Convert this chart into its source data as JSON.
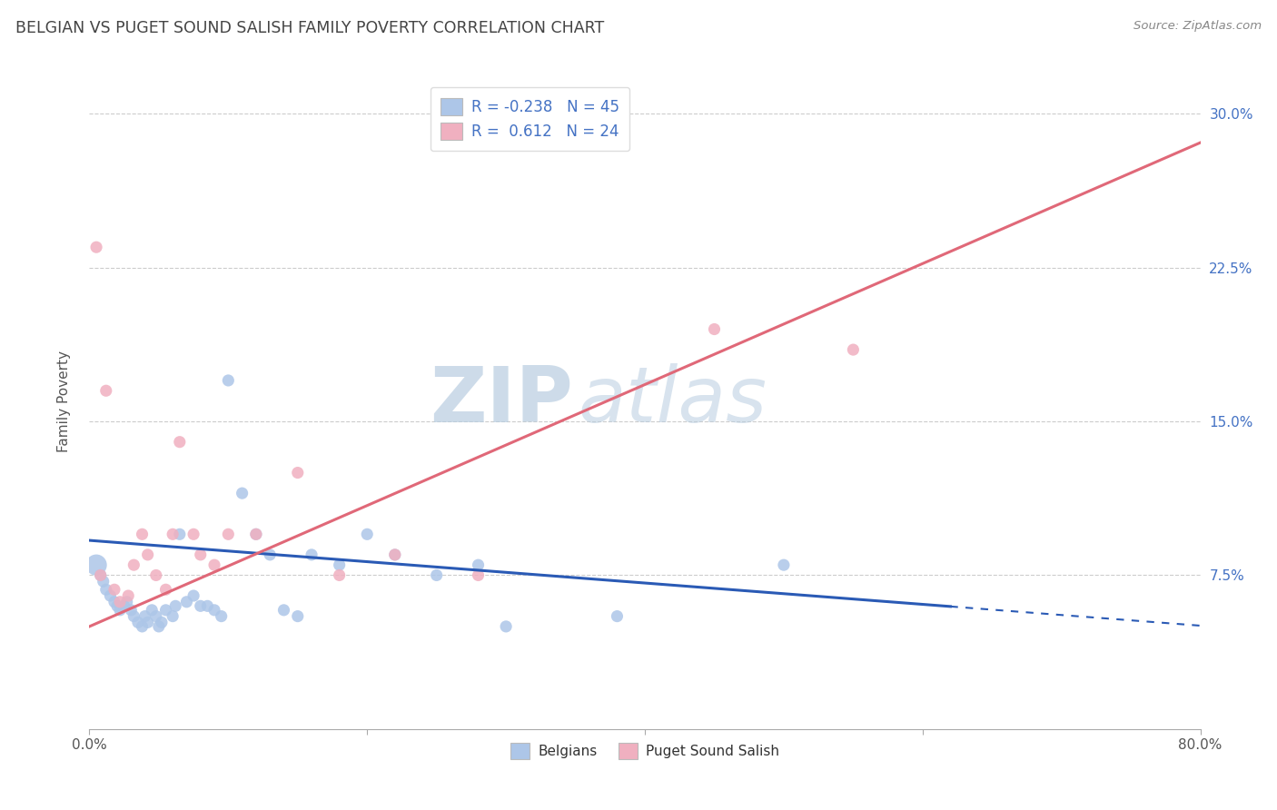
{
  "title": "BELGIAN VS PUGET SOUND SALISH FAMILY POVERTY CORRELATION CHART",
  "source": "Source: ZipAtlas.com",
  "ylabel": "Family Poverty",
  "xlim": [
    0.0,
    0.8
  ],
  "ylim": [
    0.0,
    0.32
  ],
  "xticks": [
    0.0,
    0.2,
    0.4,
    0.6,
    0.8
  ],
  "xtick_labels": [
    "0.0%",
    "",
    "",
    "",
    "80.0%"
  ],
  "yticks": [
    0.0,
    0.075,
    0.15,
    0.225,
    0.3
  ],
  "ytick_labels": [
    "",
    "7.5%",
    "15.0%",
    "22.5%",
    "30.0%"
  ],
  "blue_R": -0.238,
  "blue_N": 45,
  "pink_R": 0.612,
  "pink_N": 24,
  "blue_color": "#adc6e8",
  "pink_color": "#f0b0c0",
  "blue_line_color": "#2a5ab5",
  "pink_line_color": "#e06878",
  "watermark_zip": "ZIP",
  "watermark_atlas": "atlas",
  "blue_line_intercept": 0.092,
  "blue_line_slope": -0.052,
  "blue_line_solid_end": 0.62,
  "pink_line_intercept": 0.05,
  "pink_line_slope": 0.295,
  "blue_x": [
    0.005,
    0.008,
    0.01,
    0.012,
    0.015,
    0.018,
    0.02,
    0.022,
    0.025,
    0.027,
    0.03,
    0.032,
    0.035,
    0.038,
    0.04,
    0.042,
    0.045,
    0.048,
    0.05,
    0.052,
    0.055,
    0.06,
    0.062,
    0.065,
    0.07,
    0.075,
    0.08,
    0.085,
    0.09,
    0.095,
    0.1,
    0.11,
    0.12,
    0.13,
    0.14,
    0.15,
    0.16,
    0.18,
    0.2,
    0.22,
    0.25,
    0.28,
    0.3,
    0.38,
    0.5
  ],
  "blue_y": [
    0.08,
    0.075,
    0.072,
    0.068,
    0.065,
    0.062,
    0.06,
    0.058,
    0.06,
    0.062,
    0.058,
    0.055,
    0.052,
    0.05,
    0.055,
    0.052,
    0.058,
    0.055,
    0.05,
    0.052,
    0.058,
    0.055,
    0.06,
    0.095,
    0.062,
    0.065,
    0.06,
    0.06,
    0.058,
    0.055,
    0.17,
    0.115,
    0.095,
    0.085,
    0.058,
    0.055,
    0.085,
    0.08,
    0.095,
    0.085,
    0.075,
    0.08,
    0.05,
    0.055,
    0.08
  ],
  "pink_x": [
    0.005,
    0.008,
    0.012,
    0.018,
    0.022,
    0.028,
    0.032,
    0.038,
    0.042,
    0.048,
    0.055,
    0.06,
    0.065,
    0.075,
    0.08,
    0.09,
    0.1,
    0.12,
    0.15,
    0.18,
    0.22,
    0.28,
    0.45,
    0.55
  ],
  "pink_y": [
    0.235,
    0.075,
    0.165,
    0.068,
    0.062,
    0.065,
    0.08,
    0.095,
    0.085,
    0.075,
    0.068,
    0.095,
    0.14,
    0.095,
    0.085,
    0.08,
    0.095,
    0.095,
    0.125,
    0.075,
    0.085,
    0.075,
    0.195,
    0.185
  ]
}
